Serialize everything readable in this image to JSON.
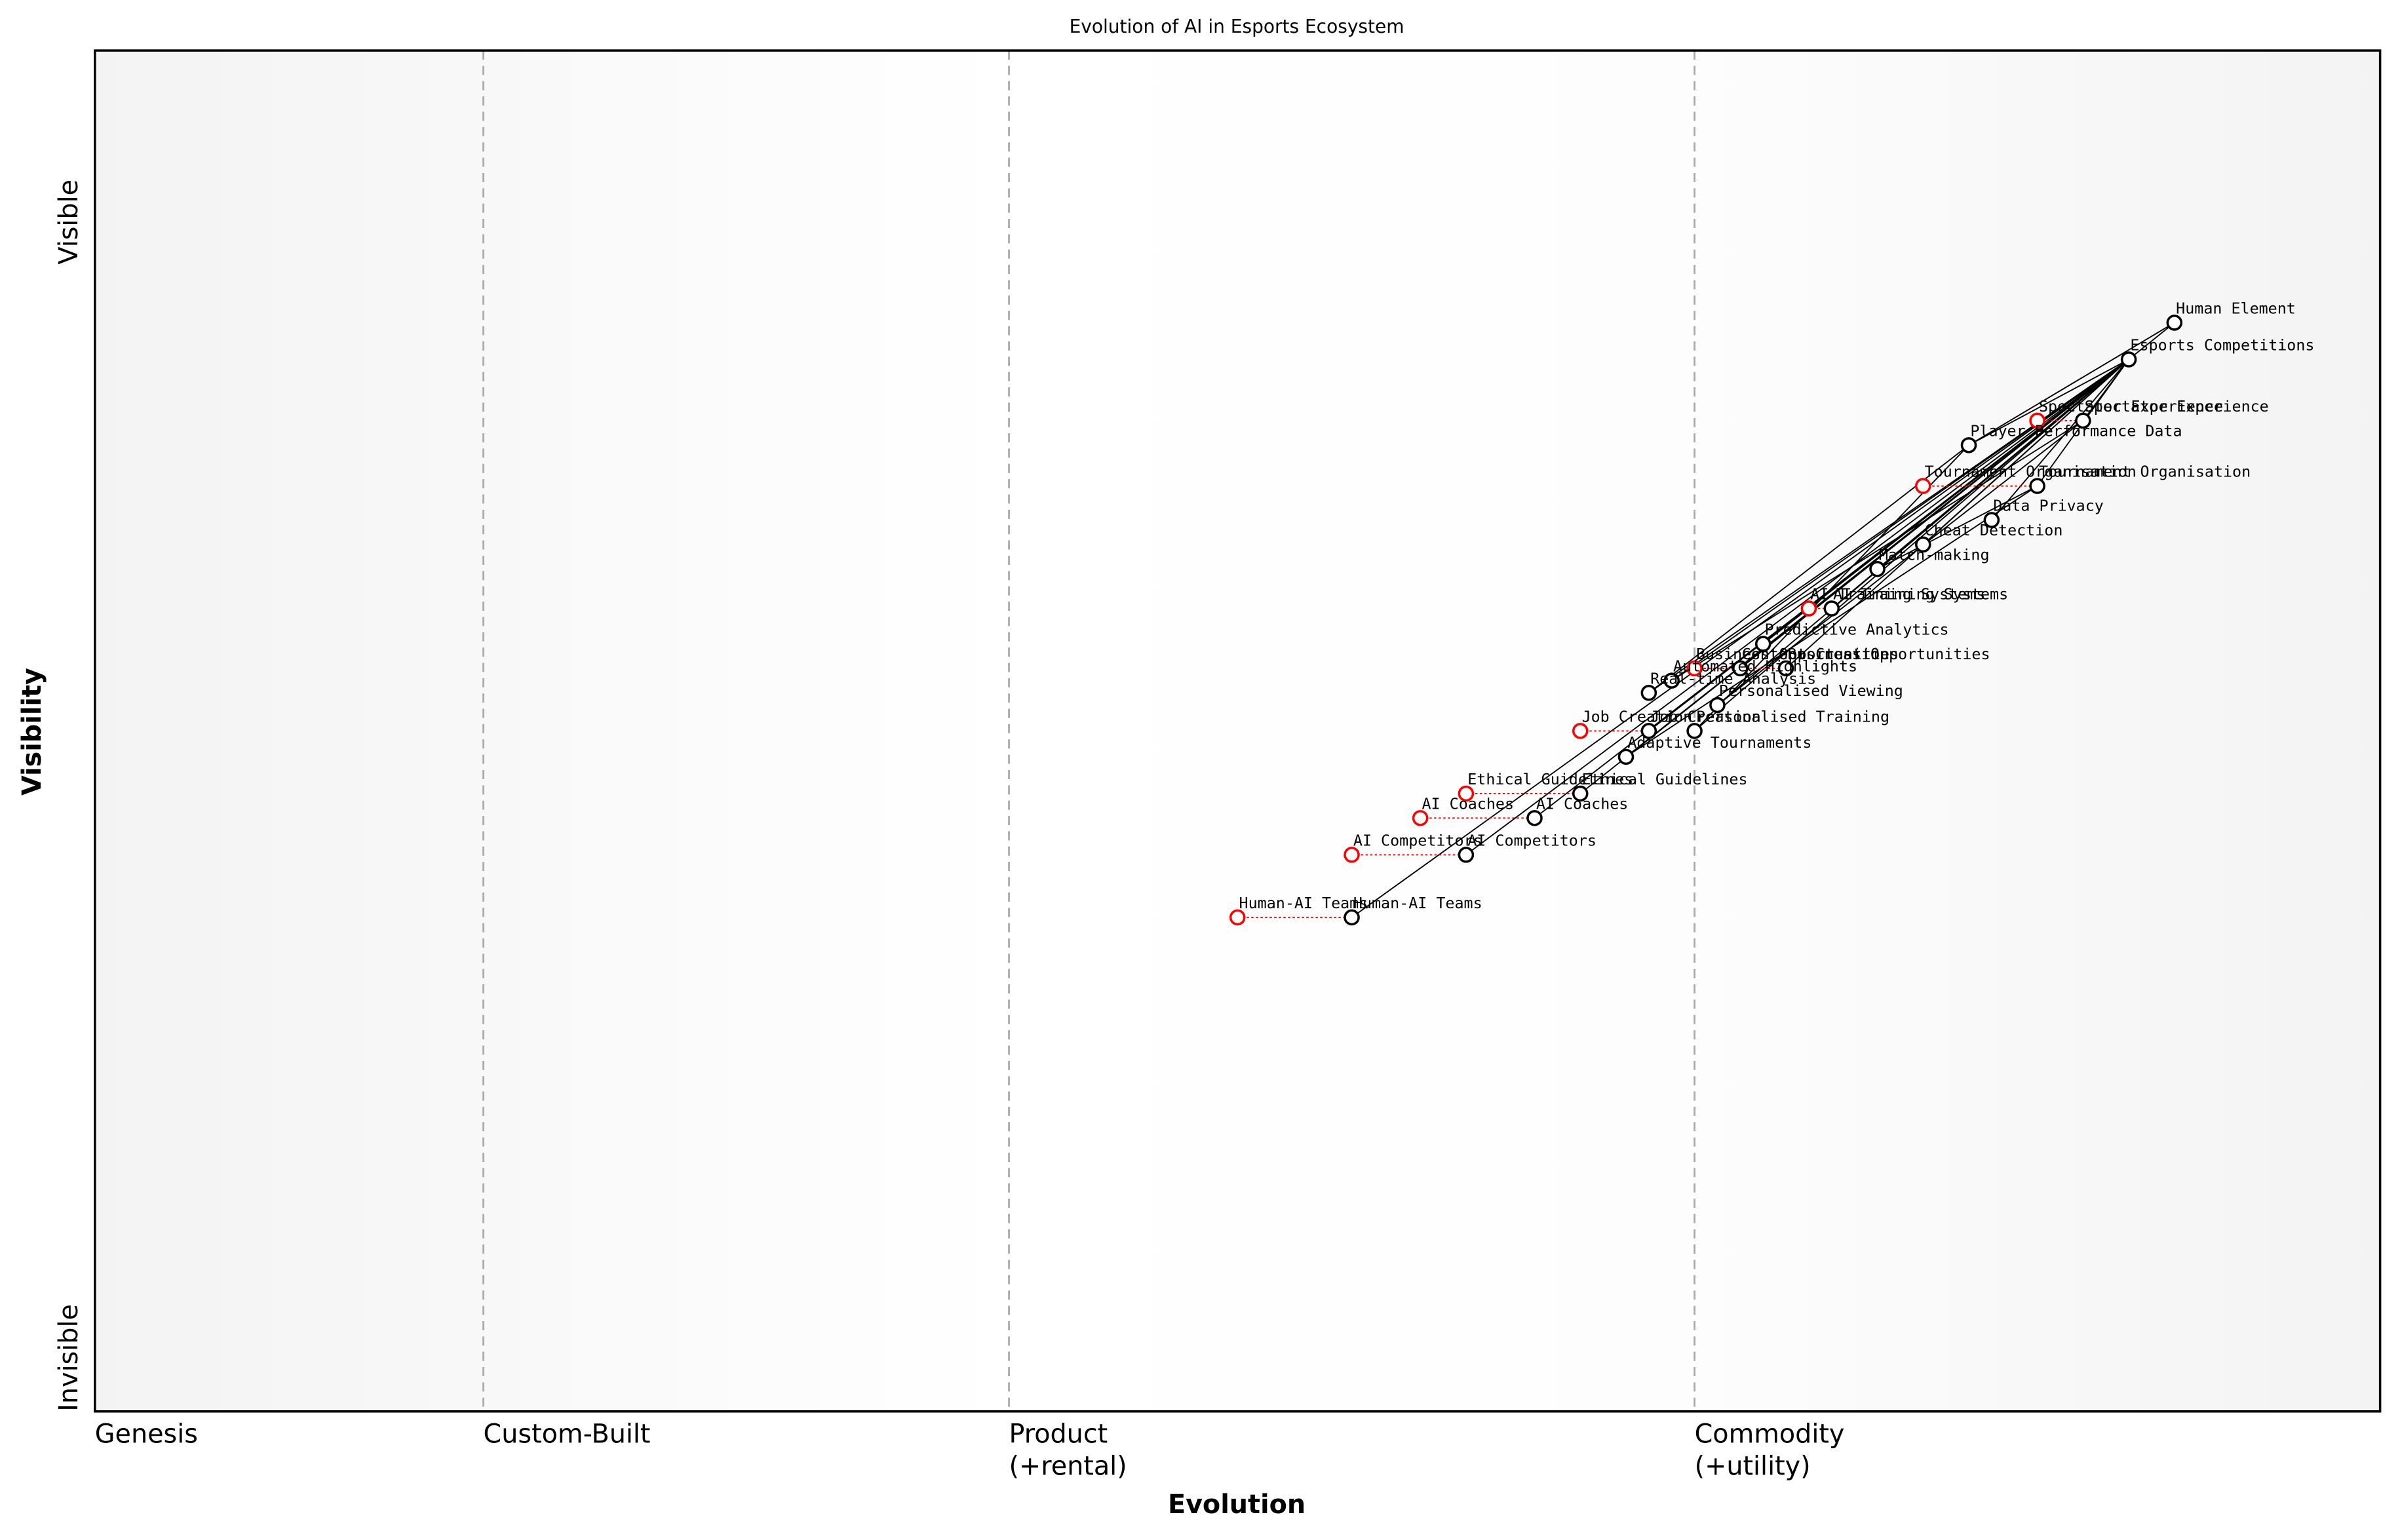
{
  "chart_data": {
    "type": "wardley",
    "title": "Evolution of AI in Esports Ecosystem",
    "xlabel": "Evolution",
    "ylabel": "Visibility",
    "xlim": [
      0,
      1
    ],
    "ylim": [
      0,
      1
    ],
    "xticks": [
      {
        "value": 0,
        "label": [
          "Genesis"
        ]
      },
      {
        "value": 0.17,
        "label": [
          "Custom-Built"
        ]
      },
      {
        "value": 0.4,
        "label": [
          "Product",
          "(+rental)"
        ]
      },
      {
        "value": 0.7,
        "label": [
          "Commodity",
          "(+utility)"
        ]
      }
    ],
    "yticks": [
      {
        "value": 0,
        "label": "Invisible"
      },
      {
        "value": 0.874,
        "label": "Visible"
      }
    ],
    "nodes": [
      {
        "name": "Human Element",
        "x": 0.91,
        "y": 0.8
      },
      {
        "name": "Esports Competitions",
        "x": 0.89,
        "y": 0.773
      },
      {
        "name": "Spectator Experience",
        "x": 0.87,
        "y": 0.728,
        "evolve": 0.85
      },
      {
        "name": "Player Performance Data",
        "x": 0.82,
        "y": 0.71
      },
      {
        "name": "Tournament Organisation",
        "x": 0.85,
        "y": 0.68,
        "evolve": 0.8
      },
      {
        "name": "Data Privacy",
        "x": 0.83,
        "y": 0.655
      },
      {
        "name": "Cheat Detection",
        "x": 0.8,
        "y": 0.637
      },
      {
        "name": "Match-making",
        "x": 0.78,
        "y": 0.619
      },
      {
        "name": "AI Training Systems",
        "x": 0.76,
        "y": 0.59,
        "evolve": 0.75
      },
      {
        "name": "Predictive Analytics",
        "x": 0.73,
        "y": 0.564
      },
      {
        "name": "Business Opportunities",
        "x": 0.74,
        "y": 0.546,
        "evolve": 0.7
      },
      {
        "name": "Content Creation",
        "x": 0.72,
        "y": 0.546
      },
      {
        "name": "Automated Highlights",
        "x": 0.69,
        "y": 0.537
      },
      {
        "name": "Real-time Analysis",
        "x": 0.68,
        "y": 0.528
      },
      {
        "name": "Personalised Viewing",
        "x": 0.71,
        "y": 0.519
      },
      {
        "name": "Job Creation",
        "x": 0.68,
        "y": 0.5,
        "evolve": 0.65
      },
      {
        "name": "Personalised Training",
        "x": 0.7,
        "y": 0.5
      },
      {
        "name": "Adaptive Tournaments",
        "x": 0.67,
        "y": 0.481
      },
      {
        "name": "Ethical Guidelines",
        "x": 0.65,
        "y": 0.454,
        "evolve": 0.6
      },
      {
        "name": "AI Coaches",
        "x": 0.63,
        "y": 0.436,
        "evolve": 0.58
      },
      {
        "name": "AI Competitors",
        "x": 0.6,
        "y": 0.409,
        "evolve": 0.55
      },
      {
        "name": "Human-AI Teams",
        "x": 0.55,
        "y": 0.363,
        "evolve": 0.5
      }
    ],
    "links": [
      [
        0,
        1
      ],
      [
        0,
        3
      ],
      [
        1,
        2
      ],
      [
        1,
        3
      ],
      [
        1,
        4
      ],
      [
        1,
        5
      ],
      [
        1,
        6
      ],
      [
        1,
        7
      ],
      [
        1,
        8
      ],
      [
        1,
        9
      ],
      [
        1,
        10
      ],
      [
        1,
        11
      ],
      [
        1,
        12
      ],
      [
        1,
        13
      ],
      [
        1,
        14
      ],
      [
        1,
        15
      ],
      [
        1,
        16
      ],
      [
        1,
        17
      ],
      [
        1,
        18
      ],
      [
        1,
        19
      ],
      [
        1,
        20
      ],
      [
        1,
        21
      ],
      [
        2,
        12
      ],
      [
        2,
        14
      ],
      [
        4,
        7
      ],
      [
        4,
        17
      ],
      [
        3,
        13
      ],
      [
        3,
        16
      ]
    ],
    "node_color": "#000000",
    "evolve_color": "#ff0000"
  }
}
